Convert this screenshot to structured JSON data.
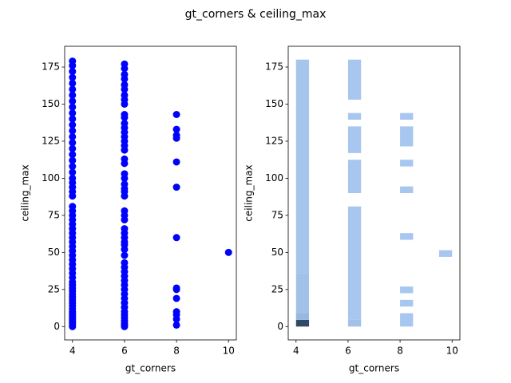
{
  "title": "gt_corners & ceiling_max",
  "chart_data": [
    {
      "type": "scatter",
      "xlabel": "gt_corners",
      "ylabel": "ceiling_max",
      "color": "#0000ff",
      "xlim": [
        3.7,
        10.3
      ],
      "ylim": [
        -9,
        189
      ],
      "xticks": [
        4,
        6,
        8,
        10
      ],
      "yticks": [
        0,
        25,
        50,
        75,
        100,
        125,
        150,
        175
      ],
      "x": [
        4,
        4,
        4,
        4,
        4,
        4,
        4,
        4,
        4,
        4,
        4,
        4,
        4,
        4,
        4,
        4,
        4,
        4,
        4,
        4,
        4,
        4,
        4,
        4,
        4,
        4,
        4,
        4,
        4,
        4,
        4,
        4,
        4,
        4,
        4,
        4,
        4,
        4,
        4,
        4,
        4,
        4,
        4,
        4,
        4,
        4,
        4,
        4,
        4,
        4,
        4,
        4,
        4,
        4,
        4,
        4,
        4,
        4,
        4,
        4,
        4,
        4,
        4,
        6,
        6,
        6,
        6,
        6,
        6,
        6,
        6,
        6,
        6,
        6,
        6,
        6,
        6,
        6,
        6,
        6,
        6,
        6,
        6,
        6,
        6,
        6,
        6,
        6,
        6,
        6,
        6,
        6,
        6,
        6,
        6,
        6,
        6,
        6,
        6,
        6,
        6,
        6,
        6,
        6,
        6,
        6,
        6,
        6,
        6,
        6,
        6,
        6,
        6,
        6,
        6,
        6,
        6,
        8,
        8,
        8,
        8,
        8,
        8,
        8,
        8,
        8,
        8,
        8,
        8,
        8,
        8,
        10
      ],
      "y": [
        0,
        1,
        2,
        3,
        4,
        5,
        6,
        7,
        8,
        9,
        10,
        12,
        14,
        16,
        18,
        20,
        22,
        24,
        26,
        28,
        30,
        33,
        36,
        39,
        42,
        45,
        48,
        51,
        54,
        57,
        60,
        63,
        66,
        69,
        72,
        75,
        78,
        81,
        88,
        91,
        94,
        97,
        100,
        104,
        108,
        112,
        116,
        120,
        124,
        128,
        132,
        136,
        140,
        144,
        148,
        152,
        156,
        160,
        164,
        168,
        172,
        176,
        179,
        0,
        1,
        2,
        4,
        6,
        8,
        10,
        13,
        16,
        19,
        22,
        25,
        28,
        31,
        34,
        37,
        40,
        43,
        48,
        52,
        55,
        57,
        60,
        63,
        66,
        72,
        75,
        78,
        88,
        91,
        93,
        96,
        100,
        103,
        110,
        113,
        119,
        122,
        125,
        128,
        131,
        134,
        137,
        141,
        143,
        150,
        153,
        156,
        160,
        163,
        167,
        170,
        174,
        177,
        1,
        5,
        8,
        10,
        19,
        25,
        26,
        60,
        94,
        111,
        127,
        129,
        133,
        143,
        50
      ]
    },
    {
      "type": "hist2d",
      "xlabel": "gt_corners",
      "ylabel": "ceiling_max",
      "colors": [
        "#a9c9f2",
        "#2f4a66"
      ],
      "xlim": [
        3.7,
        10.3
      ],
      "ylim": [
        -9,
        189
      ],
      "xticks": [
        4,
        6,
        8,
        10
      ],
      "yticks": [
        0,
        25,
        50,
        75,
        100,
        125,
        150,
        175
      ],
      "cells": [
        {
          "x": [
            4,
            4.5
          ],
          "y": [
            0,
            4.5
          ],
          "count": 60
        },
        {
          "x": [
            4,
            4.5
          ],
          "y": [
            4.5,
            9
          ],
          "count": 8
        },
        {
          "x": [
            4,
            4.5
          ],
          "y": [
            9,
            36
          ],
          "count": 4
        },
        {
          "x": [
            4,
            4.5
          ],
          "y": [
            36,
            180
          ],
          "count": 2
        },
        {
          "x": [
            6,
            6.5
          ],
          "y": [
            0,
            4.5
          ],
          "count": 4
        },
        {
          "x": [
            6,
            6.5
          ],
          "y": [
            4.5,
            81
          ],
          "count": 1
        },
        {
          "x": [
            6,
            6.5
          ],
          "y": [
            90,
            112.5
          ],
          "count": 1
        },
        {
          "x": [
            6,
            6.5
          ],
          "y": [
            117,
            135
          ],
          "count": 1
        },
        {
          "x": [
            6,
            6.5
          ],
          "y": [
            139.5,
            144
          ],
          "count": 1
        },
        {
          "x": [
            6,
            6.5
          ],
          "y": [
            153,
            180
          ],
          "count": 1
        },
        {
          "x": [
            8,
            8.5
          ],
          "y": [
            0,
            9
          ],
          "count": 1
        },
        {
          "x": [
            8,
            8.5
          ],
          "y": [
            13.5,
            18
          ],
          "count": 1
        },
        {
          "x": [
            8,
            8.5
          ],
          "y": [
            22.5,
            27
          ],
          "count": 1
        },
        {
          "x": [
            8,
            8.5
          ],
          "y": [
            58.5,
            63
          ],
          "count": 1
        },
        {
          "x": [
            8,
            8.5
          ],
          "y": [
            90,
            94.5
          ],
          "count": 1
        },
        {
          "x": [
            8,
            8.5
          ],
          "y": [
            108,
            112.5
          ],
          "count": 1
        },
        {
          "x": [
            8,
            8.5
          ],
          "y": [
            121.5,
            135
          ],
          "count": 1
        },
        {
          "x": [
            8,
            8.5
          ],
          "y": [
            139.5,
            144
          ],
          "count": 1
        },
        {
          "x": [
            9.5,
            10
          ],
          "y": [
            47,
            51.5
          ],
          "count": 1
        }
      ]
    }
  ]
}
